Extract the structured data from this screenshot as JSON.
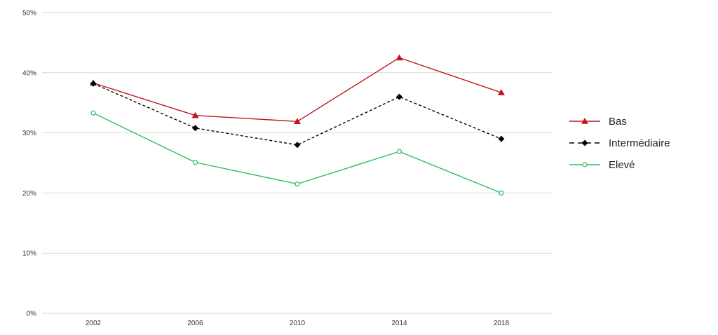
{
  "chart_data": {
    "type": "line",
    "title": "",
    "xlabel": "",
    "ylabel": "",
    "x": [
      "2002",
      "2006",
      "2010",
      "2014",
      "2018"
    ],
    "ylim": [
      0,
      50
    ],
    "yticks": [
      0,
      10,
      20,
      30,
      40,
      50
    ],
    "ytick_labels": [
      "0%",
      "10%",
      "20%",
      "30%",
      "40%",
      "50%"
    ],
    "grid": true,
    "legend_position": "right",
    "series": [
      {
        "name": "Bas",
        "values": [
          38.3,
          32.9,
          31.9,
          42.5,
          36.7
        ],
        "color": "#c0161c",
        "line_style": "solid",
        "marker": "triangle"
      },
      {
        "name": "Intermédiaire",
        "values": [
          38.2,
          30.8,
          28.0,
          36.0,
          29.0
        ],
        "color": "#000000",
        "line_style": "dashed",
        "marker": "diamond"
      },
      {
        "name": "Elevé",
        "values": [
          33.3,
          25.1,
          21.5,
          26.9,
          20.0
        ],
        "color": "#2ebd62",
        "line_style": "solid",
        "marker": "open-circle"
      }
    ]
  }
}
